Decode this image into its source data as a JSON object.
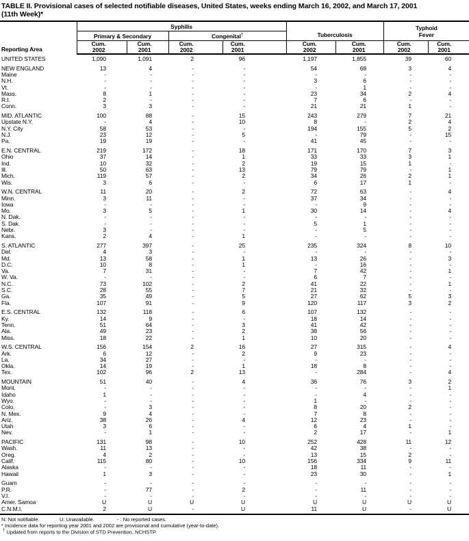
{
  "title": {
    "line1": "TABLE II. Provisional cases of selected notifiable diseases, United States, weeks ending March 16, 2002, and March 17, 2001",
    "line2": "(11th Week)*"
  },
  "header": {
    "reporting_area": "Reporting Area",
    "syphilis": "Syphilis",
    "primary_secondary": "Primary & Secondary",
    "congenital": "Congenital",
    "congenital_mark": "†",
    "tuberculosis": "Tuberculosis",
    "typhoid_line1": "Typhoid",
    "typhoid_line2": "Fever",
    "cum": "Cum.",
    "years": [
      "2002",
      "2001"
    ]
  },
  "table": {
    "groups": [
      {
        "rows": [
          [
            "UNITED STATES",
            "1,090",
            "1,091",
            "2",
            "96",
            "1,197",
            "1,855",
            "39",
            "60"
          ]
        ]
      },
      {
        "rows": [
          [
            "NEW ENGLAND",
            "13",
            "4",
            "-",
            "-",
            "54",
            "68",
            "3",
            "4"
          ],
          [
            "Maine",
            "-",
            "-",
            "-",
            "-",
            "-",
            "-",
            "-",
            "-"
          ],
          [
            "N.H.",
            "-",
            "-",
            "-",
            "-",
            "3",
            "6",
            "-",
            "-"
          ],
          [
            "Vt.",
            "-",
            "-",
            "-",
            "-",
            "-",
            "1",
            "-",
            "-"
          ],
          [
            "Mass.",
            "8",
            "1",
            "-",
            "-",
            "23",
            "34",
            "2",
            "4"
          ],
          [
            "R.I.",
            "2",
            "-",
            "-",
            "-",
            "7",
            "6",
            "-",
            "-"
          ],
          [
            "Conn.",
            "3",
            "3",
            "-",
            "-",
            "21",
            "21",
            "1",
            "-"
          ]
        ]
      },
      {
        "rows": [
          [
            "MID. ATLANTIC",
            "100",
            "88",
            "-",
            "15",
            "243",
            "279",
            "7",
            "21"
          ],
          [
            "Upstate N.Y.",
            "-",
            "4",
            "-",
            "10",
            "8",
            "-",
            "2",
            "4"
          ],
          [
            "N.Y. City",
            "58",
            "53",
            "-",
            "-",
            "194",
            "155",
            "5",
            "2"
          ],
          [
            "N.J.",
            "23",
            "12",
            "-",
            "5",
            "-",
            "79",
            "-",
            "15"
          ],
          [
            "Pa.",
            "19",
            "19",
            "-",
            "-",
            "41",
            "45",
            "-",
            "-"
          ]
        ]
      },
      {
        "rows": [
          [
            "E.N. CENTRAL",
            "219",
            "172",
            "-",
            "18",
            "171",
            "170",
            "7",
            "3"
          ],
          [
            "Ohio",
            "37",
            "14",
            "-",
            "1",
            "33",
            "33",
            "3",
            "1"
          ],
          [
            "Ind.",
            "10",
            "32",
            "-",
            "2",
            "19",
            "15",
            "1",
            "-"
          ],
          [
            "Ill.",
            "50",
            "63",
            "-",
            "13",
            "79",
            "79",
            "-",
            "1"
          ],
          [
            "Mich.",
            "119",
            "57",
            "-",
            "2",
            "34",
            "26",
            "2",
            "1"
          ],
          [
            "Wis.",
            "3",
            "6",
            "-",
            "-",
            "6",
            "17",
            "1",
            "-"
          ]
        ]
      },
      {
        "rows": [
          [
            "W.N. CENTRAL",
            "11",
            "20",
            "-",
            "2",
            "72",
            "63",
            "-",
            "4"
          ],
          [
            "Minn.",
            "3",
            "11",
            "-",
            "-",
            "37",
            "34",
            "-",
            "-"
          ],
          [
            "Iowa",
            "-",
            "-",
            "-",
            "-",
            "-",
            "9",
            "-",
            "-"
          ],
          [
            "Mo.",
            "3",
            "5",
            "-",
            "1",
            "30",
            "14",
            "-",
            "4"
          ],
          [
            "N. Dak.",
            "-",
            "-",
            "-",
            "-",
            "-",
            "-",
            "-",
            "-"
          ],
          [
            "S. Dak.",
            "-",
            "-",
            "-",
            "-",
            "5",
            "1",
            "-",
            "-"
          ],
          [
            "Nebr.",
            "3",
            "-",
            "-",
            "-",
            "-",
            "5",
            "-",
            "-"
          ],
          [
            "Kans.",
            "2",
            "4",
            "-",
            "1",
            "-",
            "-",
            "-",
            "-"
          ]
        ]
      },
      {
        "rows": [
          [
            "S. ATLANTIC",
            "277",
            "397",
            "-",
            "25",
            "235",
            "324",
            "8",
            "10"
          ],
          [
            "Del.",
            "4",
            "3",
            "-",
            "-",
            "-",
            "-",
            "-",
            "-"
          ],
          [
            "Md.",
            "13",
            "58",
            "-",
            "1",
            "13",
            "26",
            "-",
            "3"
          ],
          [
            "D.C.",
            "10",
            "8",
            "-",
            "1",
            "-",
            "16",
            "-",
            "-"
          ],
          [
            "Va.",
            "7",
            "31",
            "-",
            "-",
            "7",
            "42",
            "-",
            "1"
          ],
          [
            "W. Va.",
            "-",
            "-",
            "-",
            "-",
            "6",
            "7",
            "-",
            "-"
          ],
          [
            "N.C.",
            "73",
            "102",
            "-",
            "2",
            "41",
            "22",
            "-",
            "1"
          ],
          [
            "S.C.",
            "28",
            "55",
            "-",
            "7",
            "21",
            "32",
            "-",
            "-"
          ],
          [
            "Ga.",
            "35",
            "49",
            "-",
            "5",
            "27",
            "62",
            "5",
            "3"
          ],
          [
            "Fla.",
            "107",
            "91",
            "-",
            "9",
            "120",
            "117",
            "3",
            "2"
          ]
        ]
      },
      {
        "rows": [
          [
            "E.S. CENTRAL",
            "132",
            "118",
            "-",
            "6",
            "107",
            "132",
            "-",
            "-"
          ],
          [
            "Ky.",
            "14",
            "9",
            "-",
            "-",
            "18",
            "14",
            "-",
            "-"
          ],
          [
            "Tenn.",
            "51",
            "64",
            "-",
            "3",
            "41",
            "42",
            "-",
            "-"
          ],
          [
            "Ala.",
            "49",
            "23",
            "-",
            "2",
            "38",
            "56",
            "-",
            "-"
          ],
          [
            "Miss.",
            "18",
            "22",
            "-",
            "1",
            "10",
            "20",
            "-",
            "-"
          ]
        ]
      },
      {
        "rows": [
          [
            "W.S. CENTRAL",
            "156",
            "154",
            "2",
            "16",
            "27",
            "315",
            "-",
            "4"
          ],
          [
            "Ark.",
            "6",
            "12",
            "-",
            "2",
            "9",
            "23",
            "-",
            "-"
          ],
          [
            "La.",
            "34",
            "27",
            "-",
            "-",
            "-",
            "-",
            "-",
            "-"
          ],
          [
            "Okla.",
            "14",
            "19",
            "-",
            "1",
            "18",
            "8",
            "-",
            "-"
          ],
          [
            "Tex.",
            "102",
            "96",
            "2",
            "13",
            "-",
            "284",
            "-",
            "4"
          ]
        ]
      },
      {
        "rows": [
          [
            "MOUNTAIN",
            "51",
            "40",
            "-",
            "4",
            "36",
            "76",
            "3",
            "2"
          ],
          [
            "Mont.",
            "-",
            "-",
            "-",
            "-",
            "-",
            "-",
            "-",
            "1"
          ],
          [
            "Idaho",
            "1",
            "-",
            "-",
            "-",
            "-",
            "4",
            "-",
            "-"
          ],
          [
            "Wyo.",
            "-",
            "-",
            "-",
            "-",
            "1",
            "-",
            "-",
            "-"
          ],
          [
            "Colo.",
            "-",
            "3",
            "-",
            "-",
            "8",
            "20",
            "2",
            "-"
          ],
          [
            "N. Mex.",
            "9",
            "4",
            "-",
            "-",
            "7",
            "8",
            "-",
            "-"
          ],
          [
            "Ariz.",
            "38",
            "26",
            "-",
            "4",
            "12",
            "23",
            "-",
            "-"
          ],
          [
            "Utah",
            "3",
            "6",
            "-",
            "-",
            "6",
            "4",
            "1",
            "-"
          ],
          [
            "Nev.",
            "-",
            "1",
            "-",
            "-",
            "2",
            "17",
            "-",
            "1"
          ]
        ]
      },
      {
        "rows": [
          [
            "PACIFIC",
            "131",
            "98",
            "-",
            "10",
            "252",
            "428",
            "11",
            "12"
          ],
          [
            "Wash.",
            "11",
            "13",
            "-",
            "-",
            "42",
            "38",
            "-",
            "-"
          ],
          [
            "Oreg.",
            "4",
            "2",
            "-",
            "-",
            "13",
            "15",
            "2",
            "-"
          ],
          [
            "Calif.",
            "115",
            "80",
            "-",
            "10",
            "156",
            "334",
            "9",
            "11"
          ],
          [
            "Alaska",
            "-",
            "-",
            "-",
            "-",
            "18",
            "11",
            "-",
            "-"
          ],
          [
            "Hawaii",
            "1",
            "3",
            "-",
            "-",
            "23",
            "30",
            "-",
            "1"
          ]
        ]
      },
      {
        "rows": [
          [
            "Guam",
            "-",
            "-",
            "-",
            "-",
            "-",
            "-",
            "-",
            "-"
          ],
          [
            "P.R.",
            "-",
            "77",
            "-",
            "2",
            "-",
            "11",
            "-",
            "-"
          ],
          [
            "V.I.",
            "-",
            "-",
            "-",
            "-",
            "-",
            "-",
            "-",
            "-"
          ],
          [
            "Amer. Samoa",
            "U",
            "U",
            "U",
            "U",
            "U",
            "U",
            "U",
            "U"
          ],
          [
            "C.N.M.I.",
            "2",
            "U",
            "-",
            "U",
            "11",
            "U",
            "-",
            "U"
          ]
        ]
      }
    ]
  },
  "legend": [
    "N: Not notifiable.",
    "U: Unavailable.",
    "- : No reported cases."
  ],
  "footnotes": {
    "asterisk": "* Incidence data for reporting year 2001 and 2002 are provisional and cumulative (year-to-date).",
    "dagger_mark": "†",
    "dagger_text": " Updated from reports to the Division of STD Prevention, NCHSTP."
  }
}
